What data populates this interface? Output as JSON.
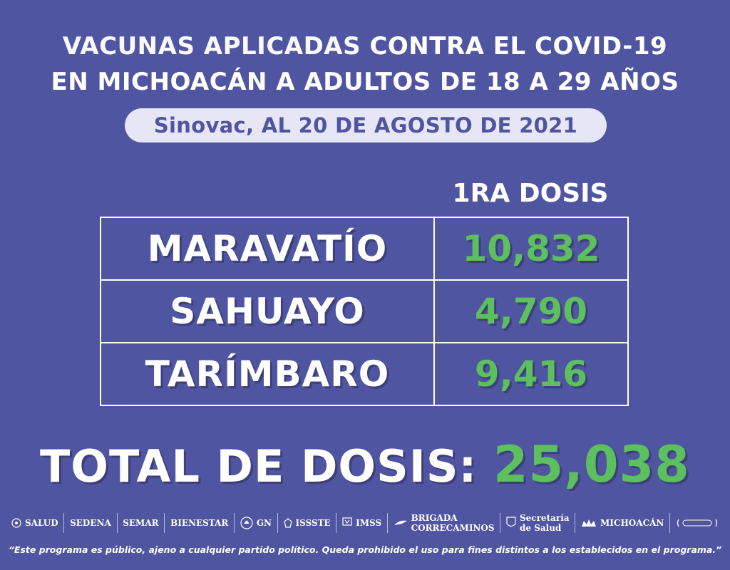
{
  "header": {
    "line1_a": "VACUNAS APLICADAS ",
    "line1_b": "CONTRA EL COVID-19",
    "line2": "EN MICHOACÁN A ADULTOS DE 18 A 29 AÑOS",
    "subtitle": "Sinovac, AL 20 DE AGOSTO DE 2021"
  },
  "table": {
    "column_header": "1RA DOSIS",
    "rows": [
      {
        "municipio": "MARAVATÍO",
        "dosis": "10,832"
      },
      {
        "municipio": "SAHUAYO",
        "dosis": "4,790"
      },
      {
        "municipio": "TARÍMBARO",
        "dosis": "9,416"
      }
    ]
  },
  "total": {
    "label": "TOTAL DE DOSIS:",
    "value": "25,038"
  },
  "logos": {
    "salud": "SALUD",
    "sedena": "SEDENA",
    "semar": "SEMAR",
    "bienestar": "BIENESTAR",
    "gn": "GN",
    "issste": "ISSSTE",
    "imss": "IMSS",
    "brigada_1": "BRIGADA",
    "brigada_2": "CORRECAMINOS",
    "secretaria_1": "Secretaría",
    "secretaria_2": "de Salud",
    "michoacan": "MICHOACÁN"
  },
  "footer": "“Este programa es público, ajeno a cualquier partido político. Queda prohibido el uso para fines distintos a los establecidos en el programa.”",
  "colors": {
    "background": "#5055a1",
    "accent_green": "#5cc05e",
    "pill": "#e6e6f6"
  }
}
